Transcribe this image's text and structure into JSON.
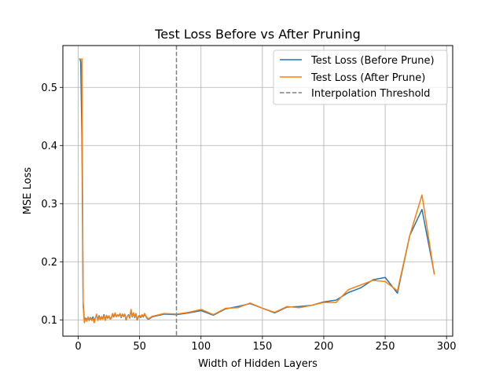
{
  "chart_data": {
    "type": "line",
    "title": "Test Loss Before vs After Pruning",
    "xlabel": "Width of Hidden Layers",
    "ylabel": "MSE Loss",
    "xlim": [
      -12.5,
      305
    ],
    "ylim": [
      0.072,
      0.572
    ],
    "xticks": [
      0,
      50,
      100,
      150,
      200,
      250,
      300
    ],
    "yticks": [
      0.1,
      0.2,
      0.3,
      0.4,
      0.5
    ],
    "xtick_labels": [
      "0",
      "50",
      "100",
      "150",
      "200",
      "250",
      "300"
    ],
    "ytick_labels": [
      "0.1",
      "0.2",
      "0.3",
      "0.4",
      "0.5"
    ],
    "grid": true,
    "legend_position": "top-right",
    "threshold": {
      "name": "Interpolation Threshold",
      "x": 80,
      "color": "#808080",
      "style": "dashed"
    },
    "series": [
      {
        "name": "Test Loss (Before Prune)",
        "color": "#1f77b4",
        "points": [
          [
            1,
            0.55
          ],
          [
            2,
            0.545
          ],
          [
            3,
            0.42
          ],
          [
            4,
            0.13
          ],
          [
            5,
            0.098
          ],
          [
            6,
            0.103
          ],
          [
            7,
            0.1
          ],
          [
            8,
            0.104
          ],
          [
            9,
            0.099
          ],
          [
            10,
            0.104
          ],
          [
            11,
            0.1
          ],
          [
            12,
            0.105
          ],
          [
            13,
            0.097
          ],
          [
            14,
            0.104
          ],
          [
            15,
            0.108
          ],
          [
            16,
            0.1
          ],
          [
            17,
            0.107
          ],
          [
            18,
            0.101
          ],
          [
            19,
            0.104
          ],
          [
            20,
            0.102
          ],
          [
            21,
            0.109
          ],
          [
            22,
            0.1
          ],
          [
            23,
            0.107
          ],
          [
            24,
            0.103
          ],
          [
            25,
            0.106
          ],
          [
            26,
            0.102
          ],
          [
            27,
            0.104
          ],
          [
            28,
            0.11
          ],
          [
            29,
            0.105
          ],
          [
            30,
            0.11
          ],
          [
            31,
            0.106
          ],
          [
            32,
            0.109
          ],
          [
            33,
            0.107
          ],
          [
            34,
            0.11
          ],
          [
            35,
            0.104
          ],
          [
            36,
            0.11
          ],
          [
            37,
            0.106
          ],
          [
            38,
            0.109
          ],
          [
            39,
            0.1
          ],
          [
            40,
            0.106
          ],
          [
            41,
            0.109
          ],
          [
            42,
            0.103
          ],
          [
            43,
            0.117
          ],
          [
            44,
            0.105
          ],
          [
            45,
            0.112
          ],
          [
            46,
            0.104
          ],
          [
            47,
            0.11
          ],
          [
            48,
            0.1
          ],
          [
            49,
            0.105
          ],
          [
            50,
            0.107
          ],
          [
            51,
            0.104
          ],
          [
            52,
            0.108
          ],
          [
            53,
            0.105
          ],
          [
            54,
            0.11
          ],
          [
            55,
            0.106
          ],
          [
            56,
            0.103
          ],
          [
            57,
            0.101
          ],
          [
            58,
            0.102
          ],
          [
            60,
            0.105
          ],
          [
            70,
            0.11
          ],
          [
            80,
            0.109
          ],
          [
            90,
            0.112
          ],
          [
            100,
            0.116
          ],
          [
            110,
            0.108
          ],
          [
            120,
            0.119
          ],
          [
            130,
            0.123
          ],
          [
            140,
            0.128
          ],
          [
            150,
            0.12
          ],
          [
            160,
            0.112
          ],
          [
            170,
            0.122
          ],
          [
            180,
            0.123
          ],
          [
            190,
            0.125
          ],
          [
            200,
            0.131
          ],
          [
            210,
            0.134
          ],
          [
            220,
            0.147
          ],
          [
            230,
            0.155
          ],
          [
            240,
            0.169
          ],
          [
            250,
            0.173
          ],
          [
            260,
            0.146
          ],
          [
            270,
            0.245
          ],
          [
            280,
            0.29
          ],
          [
            290,
            0.18
          ]
        ]
      },
      {
        "name": "Test Loss (After Prune)",
        "color": "#ff7f0e",
        "points": [
          [
            1,
            0.55
          ],
          [
            2,
            0.548
          ],
          [
            3,
            0.549
          ],
          [
            4,
            0.125
          ],
          [
            5,
            0.095
          ],
          [
            6,
            0.102
          ],
          [
            7,
            0.098
          ],
          [
            8,
            0.105
          ],
          [
            9,
            0.1
          ],
          [
            10,
            0.103
          ],
          [
            11,
            0.099
          ],
          [
            12,
            0.102
          ],
          [
            13,
            0.095
          ],
          [
            14,
            0.103
          ],
          [
            15,
            0.11
          ],
          [
            16,
            0.099
          ],
          [
            17,
            0.105
          ],
          [
            18,
            0.1
          ],
          [
            19,
            0.106
          ],
          [
            20,
            0.101
          ],
          [
            21,
            0.107
          ],
          [
            22,
            0.099
          ],
          [
            23,
            0.108
          ],
          [
            24,
            0.104
          ],
          [
            25,
            0.107
          ],
          [
            26,
            0.101
          ],
          [
            27,
            0.103
          ],
          [
            28,
            0.111
          ],
          [
            29,
            0.106
          ],
          [
            30,
            0.112
          ],
          [
            31,
            0.105
          ],
          [
            32,
            0.109
          ],
          [
            33,
            0.106
          ],
          [
            34,
            0.111
          ],
          [
            35,
            0.105
          ],
          [
            36,
            0.11
          ],
          [
            37,
            0.107
          ],
          [
            38,
            0.11
          ],
          [
            39,
            0.101
          ],
          [
            40,
            0.106
          ],
          [
            41,
            0.108
          ],
          [
            42,
            0.104
          ],
          [
            43,
            0.118
          ],
          [
            44,
            0.106
          ],
          [
            45,
            0.112
          ],
          [
            46,
            0.105
          ],
          [
            47,
            0.111
          ],
          [
            48,
            0.101
          ],
          [
            49,
            0.106
          ],
          [
            50,
            0.108
          ],
          [
            51,
            0.105
          ],
          [
            52,
            0.109
          ],
          [
            53,
            0.106
          ],
          [
            54,
            0.111
          ],
          [
            55,
            0.107
          ],
          [
            56,
            0.104
          ],
          [
            57,
            0.102
          ],
          [
            58,
            0.103
          ],
          [
            60,
            0.106
          ],
          [
            70,
            0.111
          ],
          [
            80,
            0.11
          ],
          [
            90,
            0.113
          ],
          [
            100,
            0.118
          ],
          [
            110,
            0.109
          ],
          [
            120,
            0.12
          ],
          [
            130,
            0.121
          ],
          [
            140,
            0.129
          ],
          [
            150,
            0.12
          ],
          [
            160,
            0.113
          ],
          [
            170,
            0.123
          ],
          [
            180,
            0.121
          ],
          [
            190,
            0.125
          ],
          [
            200,
            0.13
          ],
          [
            210,
            0.13
          ],
          [
            220,
            0.152
          ],
          [
            230,
            0.16
          ],
          [
            240,
            0.168
          ],
          [
            250,
            0.166
          ],
          [
            260,
            0.15
          ],
          [
            270,
            0.245
          ],
          [
            280,
            0.315
          ],
          [
            290,
            0.178
          ]
        ]
      }
    ]
  }
}
